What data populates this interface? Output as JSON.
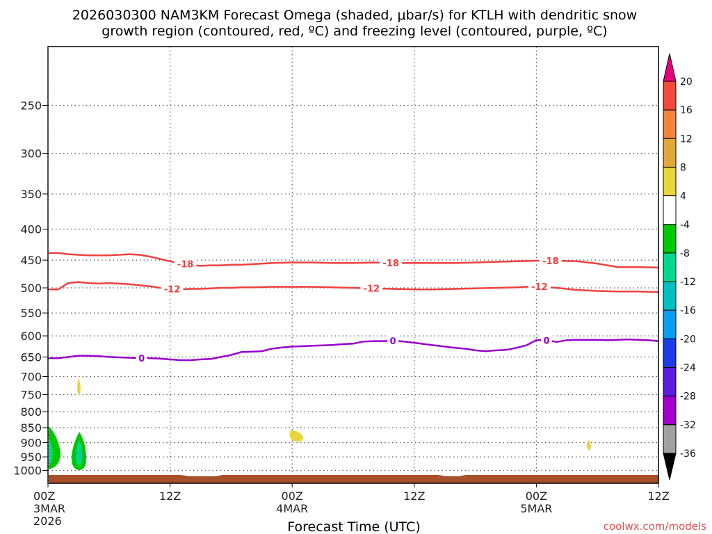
{
  "chart_data": {
    "type": "heatmap",
    "title_line1": "2026030300 NAM3KM Forecast Omega (shaded, μbar/s) for KTLH with dendritic snow",
    "title_line2": "growth region (contoured, red, ºC) and freezing level (contoured, purple, ºC)",
    "xlabel": "Forecast Time (UTC)",
    "ylabel": "",
    "watermark": "coolwx.com/models",
    "xlim": [
      0,
      60
    ],
    "ylim": [
      1050,
      200
    ],
    "x_ticks": [
      {
        "x": 0,
        "label": "00Z",
        "sub1": "3MAR",
        "sub2": "2026"
      },
      {
        "x": 12,
        "label": "12Z",
        "sub1": "",
        "sub2": ""
      },
      {
        "x": 24,
        "label": "00Z",
        "sub1": "4MAR",
        "sub2": ""
      },
      {
        "x": 36,
        "label": "12Z",
        "sub1": "",
        "sub2": ""
      },
      {
        "x": 48,
        "label": "00Z",
        "sub1": "5MAR",
        "sub2": ""
      },
      {
        "x": 60,
        "label": "12Z",
        "sub1": "",
        "sub2": ""
      }
    ],
    "y_ticks": [
      250,
      300,
      350,
      400,
      450,
      500,
      550,
      600,
      650,
      700,
      750,
      800,
      850,
      900,
      950,
      1000
    ],
    "series": [
      {
        "name": "-18",
        "color": "#f04040",
        "label_x": [
          13.5,
          33.7,
          49.4
        ],
        "x": [
          0,
          1,
          2,
          3,
          4,
          5,
          6,
          7,
          8,
          9,
          10,
          11,
          12,
          13,
          14,
          15,
          16,
          17,
          18,
          19,
          20,
          22,
          24,
          26,
          28,
          30,
          32,
          34,
          36,
          38,
          40,
          42,
          44,
          46,
          48,
          50,
          52,
          54,
          56,
          58,
          60
        ],
        "values": [
          438,
          438,
          440,
          441,
          442,
          442,
          442,
          441,
          440,
          441,
          444,
          448,
          452,
          455,
          458,
          460,
          459,
          459,
          458,
          458,
          457,
          455,
          454,
          454,
          455,
          455,
          454,
          455,
          455,
          455,
          455,
          454,
          453,
          452,
          451,
          451,
          452,
          456,
          462,
          462,
          463
        ]
      },
      {
        "name": "-12",
        "color": "#f04040",
        "label_x": [
          12.2,
          31.8,
          48.3
        ],
        "x": [
          0,
          1,
          2,
          3,
          4,
          5,
          6,
          7,
          8,
          9,
          10,
          11,
          12,
          13,
          14,
          15,
          16,
          17,
          18,
          19,
          20,
          22,
          24,
          26,
          28,
          30,
          32,
          34,
          36,
          38,
          40,
          42,
          44,
          46,
          48,
          50,
          52,
          54,
          56,
          58,
          60
        ],
        "values": [
          503,
          503,
          491,
          489,
          491,
          492,
          491,
          492,
          493,
          495,
          497,
          500,
          502,
          503,
          502,
          502,
          501,
          500,
          500,
          499,
          499,
          498,
          498,
          498,
          499,
          500,
          501,
          502,
          503,
          503,
          502,
          501,
          500,
          499,
          497,
          500,
          504,
          506,
          507,
          507,
          508
        ]
      },
      {
        "name": "0",
        "color": "#9a00cc",
        "label_x": [
          9.2,
          33.9,
          49.0
        ],
        "x": [
          0,
          1,
          2,
          3,
          4,
          5,
          6,
          7,
          8,
          9,
          10,
          11,
          12,
          13,
          14,
          15,
          16,
          17,
          18,
          19,
          20,
          21,
          22,
          23,
          24,
          25,
          26,
          27,
          28,
          29,
          30,
          31,
          32,
          33,
          34,
          35,
          36,
          37,
          38,
          39,
          40,
          41,
          42,
          43,
          44,
          45,
          46,
          47,
          48,
          49,
          50,
          51,
          52,
          53,
          54,
          55,
          56,
          57,
          58,
          59,
          60
        ],
        "values": [
          653,
          653,
          650,
          647,
          647,
          648,
          650,
          651,
          652,
          653,
          653,
          654,
          656,
          658,
          658,
          656,
          655,
          650,
          645,
          638,
          637,
          636,
          630,
          627,
          625,
          624,
          623,
          622,
          621,
          619,
          618,
          613,
          612,
          612,
          611,
          613,
          616,
          619,
          622,
          625,
          628,
          630,
          634,
          636,
          634,
          633,
          628,
          622,
          610,
          610,
          614,
          610,
          609,
          609,
          609,
          610,
          609,
          608,
          609,
          610,
          612
        ]
      }
    ],
    "shaded_features": [
      {
        "name": "omega-green-1",
        "level": "-8 to -4",
        "cx": 0.3,
        "cy": 920
      },
      {
        "name": "omega-teal-1",
        "level": "-12 to -8",
        "cx": 0.2,
        "cy": 932
      },
      {
        "name": "omega-green-2",
        "level": "-8 to -4",
        "cx": 3.0,
        "cy": 918
      },
      {
        "name": "omega-teal-2",
        "level": "-12 to -8",
        "cx": 3.0,
        "cy": 932
      },
      {
        "name": "omega-cyan-2",
        "level": "-16 to -12",
        "cx": 3.1,
        "cy": 935
      },
      {
        "name": "omega-yellow-1",
        "level": "4 to 8",
        "cx": 3.0,
        "cy": 733
      },
      {
        "name": "omega-yellow-2",
        "level": "4 to 8",
        "cx": 24.3,
        "cy": 880
      },
      {
        "name": "omega-yellow-3",
        "level": "4 to 8",
        "cx": 52.8,
        "cy": 913
      }
    ],
    "colorbar": {
      "labels": [
        "20",
        "16",
        "12",
        "8",
        "4",
        "-4",
        "-8",
        "-12",
        "-16",
        "-20",
        "-24",
        "-28",
        "-32",
        "-36"
      ],
      "colors": [
        "#f04c3c",
        "#f0843c",
        "#e0a83c",
        "#e8d43c",
        "#ffffff",
        "#00c800",
        "#00d88c",
        "#00c0c0",
        "#0a9cf0",
        "#1e3ce6",
        "#5a1ede",
        "#a000c8",
        "#a0a0a0"
      ],
      "top_arrow_color": "#e6007e",
      "bottom_arrow_color": "#000000"
    },
    "terrain_color": "#a8502a",
    "grid": true
  }
}
